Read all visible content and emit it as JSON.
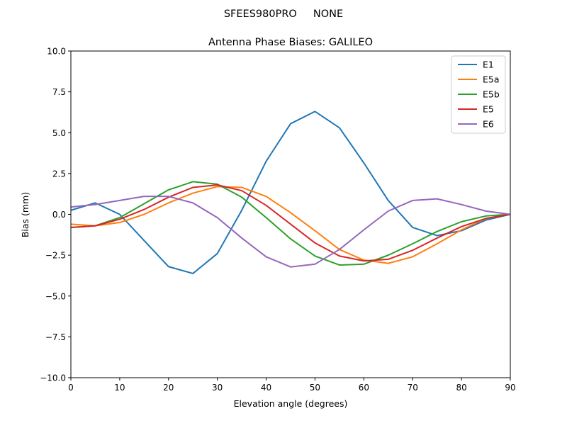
{
  "chart_data": {
    "type": "line",
    "suptitle": "SFEES980PRO     NONE",
    "title": "Antenna Phase Biases: GALILEO",
    "xlabel": "Elevation angle (degrees)",
    "ylabel": "Bias (mm)",
    "xlim": [
      0,
      90
    ],
    "ylim": [
      -10,
      10
    ],
    "xticks": [
      "0",
      "10",
      "20",
      "30",
      "40",
      "50",
      "60",
      "70",
      "80",
      "90"
    ],
    "yticks": [
      "10.0",
      "7.5",
      "5.0",
      "2.5",
      "0.0",
      "−2.5",
      "−5.0",
      "−7.5",
      "−10.0"
    ],
    "grid": false,
    "legend_position": "top-right",
    "x": [
      0,
      5,
      10,
      15,
      20,
      25,
      30,
      35,
      40,
      45,
      50,
      55,
      60,
      65,
      70,
      75,
      80,
      85,
      90
    ],
    "series": [
      {
        "name": "E1",
        "color": "#1f77b4",
        "values": [
          0.25,
          0.7,
          0.0,
          -1.6,
          -3.2,
          -3.62,
          -2.4,
          0.25,
          3.25,
          5.55,
          6.3,
          5.3,
          3.15,
          0.85,
          -0.8,
          -1.3,
          -1.0,
          -0.35,
          0.0
        ]
      },
      {
        "name": "E5a",
        "color": "#ff7f0e",
        "values": [
          -0.6,
          -0.7,
          -0.5,
          0.0,
          0.7,
          1.3,
          1.7,
          1.65,
          1.1,
          0.1,
          -1.0,
          -2.15,
          -2.8,
          -3.0,
          -2.6,
          -1.8,
          -0.95,
          -0.25,
          0.0
        ]
      },
      {
        "name": "E5b",
        "color": "#2ca02c",
        "values": [
          -0.8,
          -0.7,
          -0.2,
          0.65,
          1.5,
          2.0,
          1.85,
          1.05,
          -0.2,
          -1.5,
          -2.55,
          -3.1,
          -3.05,
          -2.5,
          -1.8,
          -1.05,
          -0.45,
          -0.1,
          0.0
        ]
      },
      {
        "name": "E5",
        "color": "#d62728",
        "values": [
          -0.8,
          -0.7,
          -0.3,
          0.3,
          1.05,
          1.65,
          1.8,
          1.45,
          0.55,
          -0.6,
          -1.75,
          -2.55,
          -2.85,
          -2.75,
          -2.2,
          -1.45,
          -0.75,
          -0.25,
          0.0
        ]
      },
      {
        "name": "E6",
        "color": "#9467bd",
        "values": [
          0.45,
          0.6,
          0.85,
          1.1,
          1.1,
          0.7,
          -0.2,
          -1.45,
          -2.6,
          -3.22,
          -3.05,
          -2.15,
          -0.95,
          0.2,
          0.85,
          0.95,
          0.6,
          0.2,
          0.0
        ]
      }
    ]
  }
}
